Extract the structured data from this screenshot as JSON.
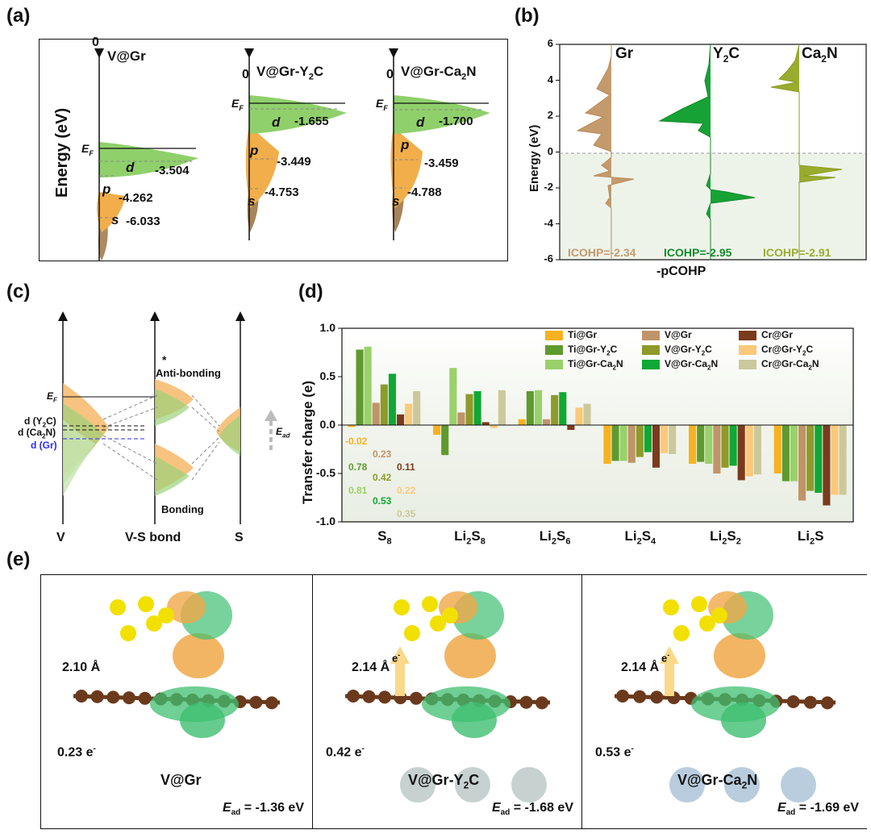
{
  "panel_labels": {
    "a": "(a)",
    "b": "(b)",
    "c": "(c)",
    "d": "(d)",
    "e": "(e)"
  },
  "panel_a": {
    "ylabel": "Energy (eV)",
    "zero_label": "0",
    "ef_label": "E",
    "ef_sub": "F",
    "orbital_d": "d",
    "orbital_p": "p",
    "orbital_s": "s",
    "systems": [
      {
        "name": "V@Gr",
        "name_main": "V@Gr",
        "name_sub": "",
        "name_tail": "",
        "d": "-3.504",
        "p": "-4.262",
        "s": "-6.033"
      },
      {
        "name": "V@Gr-Y2C",
        "name_main": "V@Gr-Y",
        "name_sub": "2",
        "name_tail": "C",
        "d": "-1.655",
        "p": "-3.449",
        "s": "-4.753"
      },
      {
        "name": "V@Gr-Ca2N",
        "name_main": "V@Gr-Ca",
        "name_sub": "2",
        "name_tail": "N",
        "d": "-1.700",
        "p": "-3.459",
        "s": "-4.788"
      }
    ]
  },
  "panel_b": {
    "ylabel": "Energy (eV)",
    "xlabel": "-pCOHP",
    "yticks": [
      "6",
      "4",
      "2",
      "0",
      "-2",
      "-4",
      "-6"
    ],
    "columns": [
      {
        "main": "Gr",
        "sub": "",
        "tail": "",
        "color": "#b98b5a",
        "icohp": "ICOHP=-2.34"
      },
      {
        "main": "Y",
        "sub": "2",
        "tail": "C",
        "color": "#138a2a",
        "icohp": "ICOHP=-2.95"
      },
      {
        "main": "Ca",
        "sub": "2",
        "tail": "N",
        "color": "#8c9b24",
        "icohp": "ICOHP=-2.91"
      }
    ]
  },
  "panel_c": {
    "ef": "E",
    "ef_sub": "F",
    "d_y2c": "d (Y",
    "d_y2c_sub": "2",
    "d_y2c_tail": "C)",
    "d_ca2n": "d (Ca",
    "d_ca2n_sub": "2",
    "d_ca2n_tail": "N)",
    "d_gr": "d (Gr)",
    "star": "*",
    "antibonding": "Anti-bonding",
    "bonding": "Bonding",
    "ead": "E",
    "ead_sub": "ad",
    "x_labels": [
      "V",
      "V-S bond",
      "S"
    ]
  },
  "chart_data": {
    "type": "bar",
    "title": "",
    "xlabel": "",
    "ylabel": "Transfer charge (e)",
    "ylim": [
      -1.0,
      1.0
    ],
    "yticks": [
      "1.0",
      "0.5",
      "0.0",
      "-0.5",
      "-1.0"
    ],
    "categories": [
      "S8",
      "Li2S8",
      "Li2S6",
      "Li2S4",
      "Li2S2",
      "Li2S"
    ],
    "category_labels": [
      {
        "main": "S",
        "sub": "8",
        "tail": ""
      },
      {
        "main": "Li",
        "sub": "2",
        "tail": "S",
        "sub2": "8"
      },
      {
        "main": "Li",
        "sub": "2",
        "tail": "S",
        "sub2": "6"
      },
      {
        "main": "Li",
        "sub": "2",
        "tail": "S",
        "sub2": "4"
      },
      {
        "main": "Li",
        "sub": "2",
        "tail": "S",
        "sub2": "2"
      },
      {
        "main": "Li",
        "sub": "2",
        "tail": "S",
        "sub2": ""
      }
    ],
    "legend_position": "top-right",
    "series": [
      {
        "name": "Ti@Gr",
        "color": "#f7b21f",
        "values": [
          -0.02,
          -0.1,
          0.06,
          -0.4,
          -0.4,
          -0.5
        ]
      },
      {
        "name": "Ti@Gr-Y2C",
        "color": "#5f9a2e",
        "values": [
          0.78,
          -0.31,
          0.35,
          -0.37,
          -0.38,
          -0.58
        ]
      },
      {
        "name": "Ti@Gr-Ca2N",
        "color": "#9ad16a",
        "values": [
          0.81,
          0.59,
          0.36,
          -0.37,
          -0.4,
          -0.58
        ]
      },
      {
        "name": "V@Gr",
        "color": "#bf9468",
        "values": [
          0.23,
          0.13,
          0.06,
          -0.39,
          -0.5,
          -0.78
        ]
      },
      {
        "name": "V@Gr-Y2C",
        "color": "#8e9a2a",
        "values": [
          0.42,
          0.32,
          0.31,
          -0.33,
          -0.44,
          -0.68
        ]
      },
      {
        "name": "V@Gr-Ca2N",
        "color": "#10a834",
        "values": [
          0.53,
          0.35,
          0.34,
          -0.28,
          -0.42,
          -0.7
        ]
      },
      {
        "name": "Cr@Gr",
        "color": "#7a3b1d",
        "values": [
          0.11,
          0.03,
          -0.05,
          -0.44,
          -0.57,
          -0.83
        ]
      },
      {
        "name": "Cr@Gr-Y2C",
        "color": "#fbc97a",
        "values": [
          0.22,
          -0.03,
          0.18,
          -0.29,
          -0.53,
          -0.72
        ]
      },
      {
        "name": "Cr@Gr-Ca2N",
        "color": "#cbc99b",
        "values": [
          0.35,
          0.36,
          0.22,
          -0.3,
          -0.51,
          -0.72
        ]
      }
    ],
    "annotations": [
      "-0.02",
      "0.23",
      "0.78",
      "0.42",
      "0.11",
      "0.81",
      "0.22",
      "0.53",
      "0.35"
    ],
    "legend_labels": [
      {
        "main": "Ti@Gr",
        "sub": "",
        "tail": ""
      },
      {
        "main": "Ti@Gr-Y",
        "sub": "2",
        "tail": "C"
      },
      {
        "main": "Ti@Gr-Ca",
        "sub": "2",
        "tail": "N"
      },
      {
        "main": "V@Gr",
        "sub": "",
        "tail": ""
      },
      {
        "main": "V@Gr-Y",
        "sub": "2",
        "tail": "C"
      },
      {
        "main": "V@Gr-Ca",
        "sub": "2",
        "tail": "N"
      },
      {
        "main": "Cr@Gr",
        "sub": "",
        "tail": ""
      },
      {
        "main": "Cr@Gr-Y",
        "sub": "2",
        "tail": "C"
      },
      {
        "main": "Cr@Gr-Ca",
        "sub": "2",
        "tail": "N"
      }
    ]
  },
  "panel_e": {
    "cells": [
      {
        "distance": "2.10 Å",
        "charge": "0.23 e",
        "charge_sup": "-",
        "name_main": "V@Gr",
        "name_sub": "",
        "name_tail": "",
        "ead": "= -1.36 eV",
        "arrow": false
      },
      {
        "distance": "2.14 Å",
        "charge": "0.42 e",
        "charge_sup": "-",
        "name_main": "V@Gr-Y",
        "name_sub": "2",
        "name_tail": "C",
        "ead": "= -1.68 eV",
        "arrow": true
      },
      {
        "distance": "2.14 Å",
        "charge": "0.53 e",
        "charge_sup": "-",
        "name_main": "V@Gr-Ca",
        "name_sub": "2",
        "name_tail": "N",
        "ead": "= -1.69 eV",
        "arrow": true
      }
    ],
    "ead_symbol": "E",
    "ead_sub": "ad",
    "arrow_label": "e",
    "arrow_sup": "-"
  }
}
